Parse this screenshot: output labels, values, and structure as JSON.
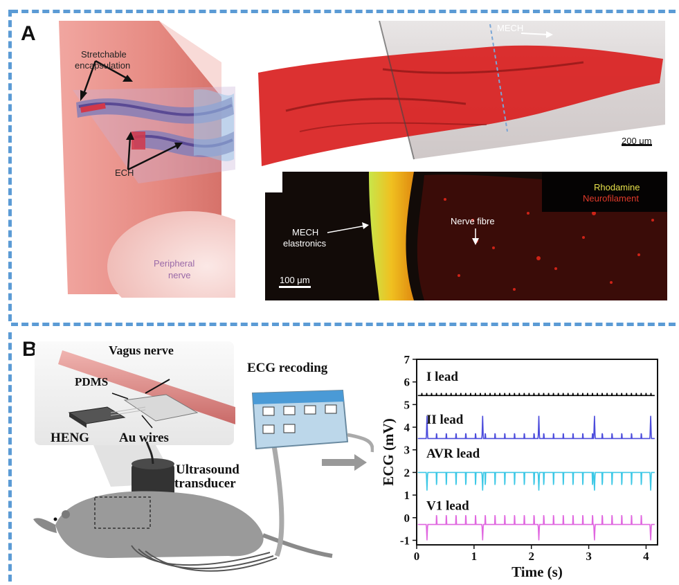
{
  "panel_a": {
    "letter": "A",
    "schematic": {
      "encapsulation_label_line1": "Stretchable",
      "encapsulation_label_line2": "encapsulation",
      "ech_label": "ECH",
      "nerve_label_line1": "Peripheral",
      "nerve_label_line2": "nerve"
    },
    "micrograph_top": {
      "mech_label": "MECH",
      "scalebar": "200 μm"
    },
    "micrograph_bottom": {
      "legend_1": "Rhodamine",
      "legend_2": "Neurofilament",
      "mech_label_line1": "MECH",
      "mech_label_line2": "elastronics",
      "nerve_label": "Nerve fibre",
      "scalebar": "100 μm"
    }
  },
  "panel_b": {
    "letter": "B",
    "illustration": {
      "vagus": "Vagus nerve",
      "pdms": "PDMS",
      "heng": "HENG",
      "au": "Au wires",
      "ultrasound_line1": "Ultrasound",
      "ultrasound_line2": "transducer",
      "ecg_title": "ECG recoding"
    }
  },
  "colors": {
    "dash": "#5b9bd5",
    "lead_I": "#000000",
    "lead_II": "#4c4cdc",
    "lead_AVR": "#3cc8e6",
    "lead_V1": "#e066e0"
  },
  "chart_data": {
    "type": "line",
    "xlabel": "Time (s)",
    "ylabel": "ECG (mV)",
    "xlim": [
      0,
      4.2
    ],
    "ylim": [
      -1.2,
      7
    ],
    "xticks": [
      "0",
      "1",
      "2",
      "3",
      "4"
    ],
    "yticks": [
      "-1",
      "0",
      "1",
      "2",
      "3",
      "4",
      "5",
      "6",
      "7"
    ],
    "series": [
      {
        "name": "I lead",
        "baseline": 5.4,
        "beat_interval_s": 0.085,
        "amplitude": 0.15,
        "color": "#000000",
        "big_spikes_s": []
      },
      {
        "name": "II lead",
        "baseline": 3.5,
        "beat_interval_s": 0.17,
        "amplitude": 0.25,
        "color": "#4c4cdc",
        "big_spikes_s": [
          0.18,
          1.15,
          2.13,
          3.1,
          4.08
        ],
        "big_spike_peak": 4.5
      },
      {
        "name": "AVR lead",
        "baseline": 2.0,
        "beat_interval_s": 0.17,
        "amplitude": -0.6,
        "color": "#3cc8e6",
        "big_spikes_s": [
          0.18,
          1.15,
          2.13,
          3.1,
          4.08
        ],
        "big_spike_peak": 1.2
      },
      {
        "name": "V1 lead",
        "baseline": -0.3,
        "beat_interval_s": 0.17,
        "amplitude": 0.45,
        "color": "#e066e0",
        "big_spikes_s": [
          0.18,
          1.15,
          2.13,
          3.1,
          4.08
        ],
        "big_spike_peak": -1.0
      }
    ]
  }
}
